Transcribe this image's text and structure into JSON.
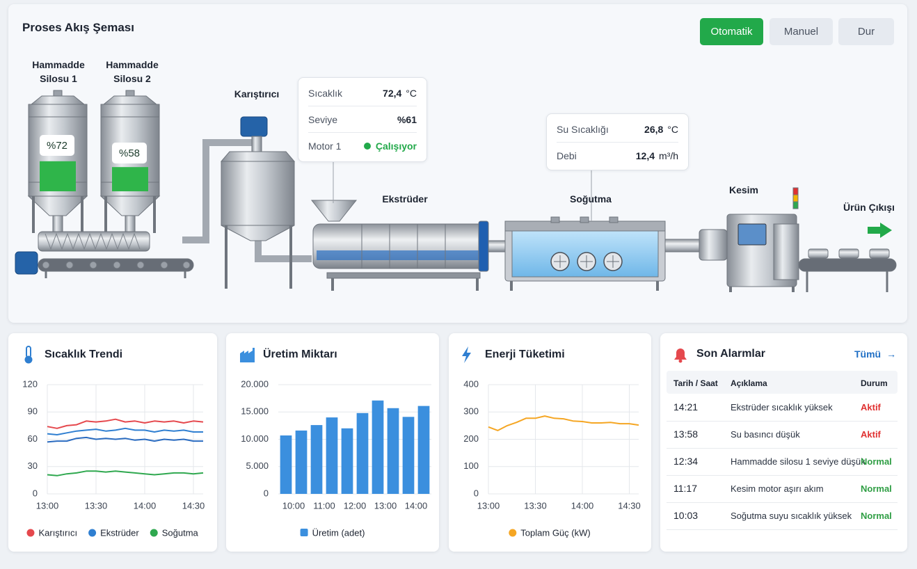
{
  "header": {
    "title": "Proses Akış Şeması",
    "buttons": [
      "Otomatik",
      "Manuel",
      "Dur"
    ]
  },
  "process": {
    "silos": [
      {
        "name": "Hammadde Silosu 1",
        "level": 72,
        "level_label": "%72"
      },
      {
        "name": "Hammadde Silosu 2",
        "level": 58,
        "level_label": "%58"
      }
    ],
    "stations": [
      "Karıştırıcı",
      "Ekstrüder",
      "Soğutma",
      "Kesim",
      "Ürün Çıkışı"
    ],
    "mixer_info": [
      {
        "label": "Sıcaklık",
        "value": "72,4",
        "unit": "°C"
      },
      {
        "label": "Seviye",
        "value": "%61"
      },
      {
        "label": "Motor 1",
        "value": "Çalışıyor",
        "color": "#22a94a"
      }
    ],
    "cooling_info": [
      {
        "label": "Su Sıcaklığı",
        "value": "26,8",
        "unit": "°C"
      },
      {
        "label": "Debi",
        "value": "12,4",
        "unit": "m³/h"
      }
    ]
  },
  "chart_data": [
    {
      "type": "line",
      "title": "Sıcaklık Trendi",
      "categories": [
        "13:00",
        null,
        null,
        null,
        null,
        "13:30",
        null,
        null,
        null,
        null,
        "14:00",
        null,
        null,
        null,
        null,
        "14:30",
        null
      ],
      "series": [
        {
          "name": "Karıştırıcı",
          "color": "#e5484d",
          "values": [
            74,
            72,
            75,
            76,
            80,
            79,
            80,
            82,
            79,
            80,
            78,
            80,
            79,
            80,
            78,
            80,
            79
          ]
        },
        {
          "name": "Ekstrüder",
          "color": "#2f7fd1",
          "values": [
            66,
            65,
            67,
            69,
            70,
            71,
            69,
            70,
            72,
            70,
            70,
            68,
            70,
            69,
            70,
            68,
            68
          ]
        },
        {
          "color": "#2a6bc0",
          "values": [
            57,
            58,
            58,
            61,
            62,
            60,
            61,
            60,
            61,
            59,
            60,
            58,
            60,
            59,
            60,
            58,
            58
          ]
        },
        {
          "name": "Soğutma",
          "color": "#2fa84f",
          "values": [
            21,
            20,
            22,
            23,
            25,
            25,
            24,
            25,
            24,
            23,
            22,
            21,
            22,
            23,
            23,
            22,
            23
          ]
        }
      ],
      "ylim": [
        0,
        120
      ],
      "yticks": [
        0,
        30,
        60,
        90,
        120
      ],
      "grid": true
    },
    {
      "type": "bar",
      "title": "Üretim Miktarı",
      "categories": [
        "10:00",
        null,
        "11:00",
        null,
        "12:00",
        null,
        "13:00",
        null,
        "14:00",
        null
      ],
      "series": [
        {
          "name": "Üretim (adet)",
          "color": "#3b8fde",
          "values": [
            10700,
            11600,
            12600,
            14000,
            12000,
            14800,
            17100,
            15700,
            14100,
            16100
          ]
        }
      ],
      "ylim": [
        0,
        20000
      ],
      "yticks": [
        0,
        {
          "value": 5000,
          "label": "5.000"
        },
        {
          "value": 10000,
          "label": "10.000"
        },
        {
          "value": 15000,
          "label": "15.000"
        },
        {
          "value": 20000,
          "label": "20.000"
        }
      ],
      "grid": true
    },
    {
      "type": "line",
      "title": "Enerji Tüketimi",
      "categories": [
        "13:00",
        null,
        null,
        null,
        null,
        "13:30",
        null,
        null,
        null,
        null,
        "14:00",
        null,
        null,
        null,
        null,
        "14:30",
        null
      ],
      "series": [
        {
          "name": "Toplam Güç (kW)",
          "color": "#f5a623",
          "values": [
            245,
            232,
            250,
            262,
            277,
            277,
            285,
            277,
            275,
            267,
            265,
            260,
            260,
            262,
            257,
            257,
            252
          ]
        }
      ],
      "ylim": [
        0,
        400
      ],
      "yticks": [
        0,
        100,
        200,
        300,
        400
      ],
      "grid": true
    }
  ],
  "alarms": {
    "title": "Son Alarmlar",
    "link": "Tümü",
    "columns": [
      "Tarih / Saat",
      "Açıklama",
      "Durum"
    ],
    "rows": [
      {
        "time": "14:21",
        "description": "Ekstrüder sıcaklık yüksek",
        "status": "Aktif",
        "color": "#e03131"
      },
      {
        "time": "13:58",
        "description": "Su basıncı düşük",
        "status": "Aktif",
        "color": "#e03131"
      },
      {
        "time": "12:34",
        "description": "Hammadde silosu 1 seviye düşük",
        "status": "Normal",
        "color": "#2f9e44"
      },
      {
        "time": "11:17",
        "description": "Kesim motor aşırı akım",
        "status": "Normal",
        "color": "#2f9e44"
      },
      {
        "time": "10:03",
        "description": "Soğutma suyu sıcaklık yüksek",
        "status": "Normal",
        "color": "#2f9e44"
      }
    ]
  }
}
